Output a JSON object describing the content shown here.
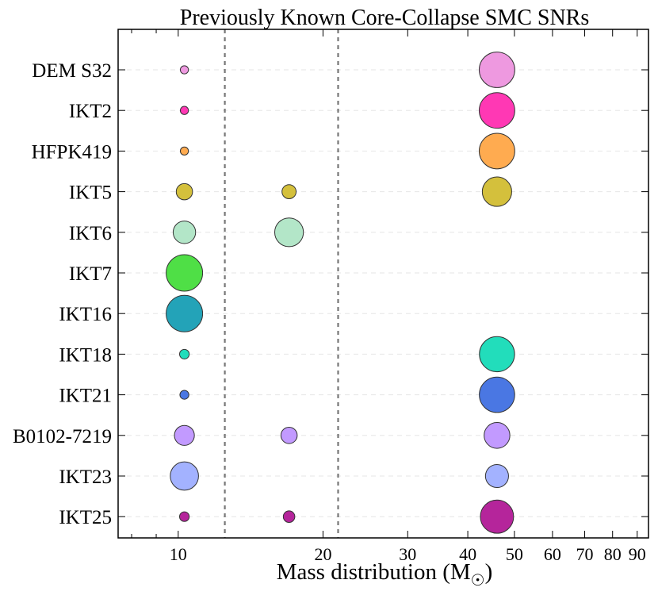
{
  "chart_data": {
    "type": "scatter",
    "title": "Previously Known Core-Collapse SMC SNRs",
    "xlabel": "Mass distribution (M",
    "xlabel_subscript": "☉",
    "xlabel_close": ")",
    "xscale": "log",
    "xlim": [
      7.5,
      95
    ],
    "xticks_major": [
      10,
      20,
      30,
      40,
      50,
      60,
      70,
      80,
      90
    ],
    "xtick_labels": [
      "10",
      "20",
      "30",
      "40",
      "50",
      "60",
      "70",
      "80",
      "90"
    ],
    "separators": [
      12.5,
      21.5
    ],
    "grid": "horizontal dashed",
    "categories": [
      "DEM S32",
      "IKT2",
      "HFPK419",
      "IKT5",
      "IKT6",
      "IKT7",
      "IKT16",
      "IKT18",
      "IKT21",
      "B0102-7219",
      "IKT23",
      "IKT25"
    ],
    "bin_centers": [
      10.3,
      17.0,
      46.0
    ],
    "series": [
      {
        "name": "DEM S32",
        "color": "#ee99e0",
        "weights": [
          0.05,
          0.0,
          0.95
        ]
      },
      {
        "name": "IKT2",
        "color": "#ff38b4",
        "weights": [
          0.05,
          0.0,
          0.95
        ]
      },
      {
        "name": "HFPK419",
        "color": "#ffab50",
        "weights": [
          0.05,
          0.0,
          0.95
        ]
      },
      {
        "name": "IKT5",
        "color": "#d4c03c",
        "weights": [
          0.2,
          0.15,
          0.65
        ]
      },
      {
        "name": "IKT6",
        "color": "#b3e6c8",
        "weights": [
          0.38,
          0.62,
          0.0
        ]
      },
      {
        "name": "IKT7",
        "color": "#4fdf46",
        "weights": [
          1.0,
          0.0,
          0.0
        ]
      },
      {
        "name": "IKT16",
        "color": "#23a3b8",
        "weights": [
          1.0,
          0.0,
          0.0
        ]
      },
      {
        "name": "IKT18",
        "color": "#22ddbb",
        "weights": [
          0.07,
          0.0,
          0.93
        ]
      },
      {
        "name": "IKT21",
        "color": "#4a77e3",
        "weights": [
          0.06,
          0.0,
          0.94
        ]
      },
      {
        "name": "B0102-7219",
        "color": "#c29aff",
        "weights": [
          0.3,
          0.2,
          0.5
        ]
      },
      {
        "name": "IKT23",
        "color": "#a3b2ff",
        "weights": [
          0.6,
          0.0,
          0.4
        ]
      },
      {
        "name": "IKT25",
        "color": "#b5259b",
        "weights": [
          0.07,
          0.1,
          0.83
        ]
      }
    ]
  }
}
